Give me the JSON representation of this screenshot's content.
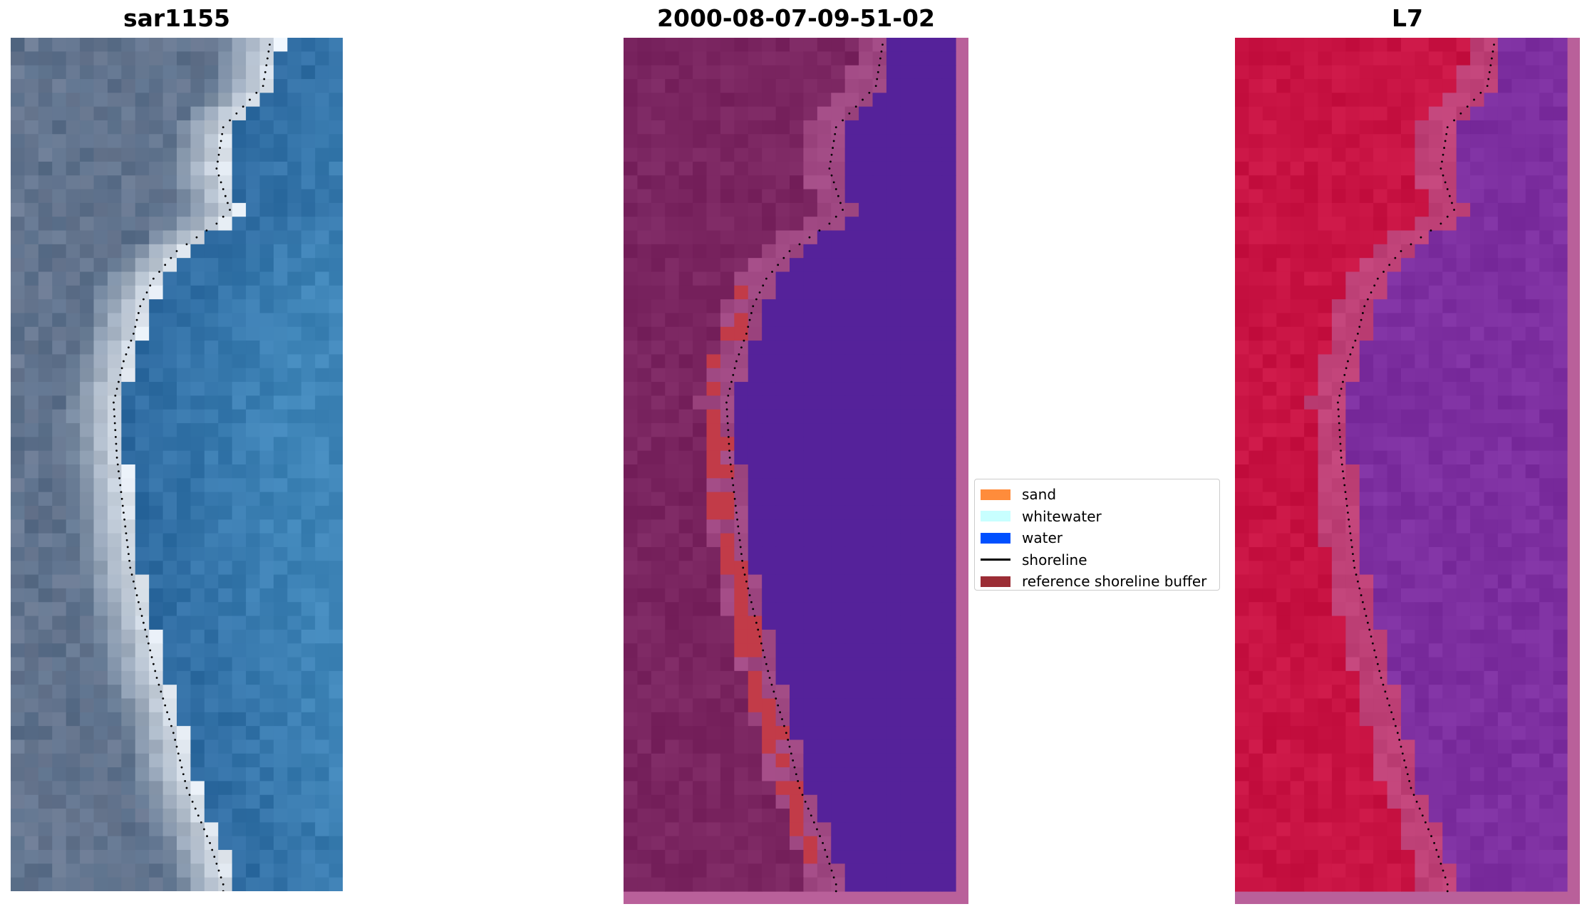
{
  "figure": {
    "panels": [
      {
        "title": "sar1155",
        "kind": "rgb-composite"
      },
      {
        "title": "2000-08-07-09-51-02",
        "kind": "classification"
      },
      {
        "title": "L7",
        "kind": "index"
      }
    ]
  },
  "legend": {
    "items": [
      {
        "label": "sand",
        "color": "#ff8c3b",
        "type": "patch"
      },
      {
        "label": "whitewater",
        "color": "#c8ffff",
        "type": "patch"
      },
      {
        "label": "water",
        "color": "#0050ff",
        "type": "patch"
      },
      {
        "label": "shoreline",
        "color": "#000000",
        "type": "line"
      },
      {
        "label": "reference shoreline buffer",
        "color": "#9b2d35",
        "type": "patch"
      }
    ]
  },
  "colors": {
    "panel1_land": "#5a6f8a",
    "panel1_sand": "#dfe6ee",
    "panel1_water": "#2e6aa0",
    "panel2_land": "#7a2560",
    "panel2_water": "#55229a",
    "panel2_buffer": "#c23b48",
    "panel2_edge": "#b9609a",
    "panel3_land": "#c81343",
    "panel3_water": "#7d2fa0",
    "panel3_edge": "#b9609a",
    "shoreline_dots": "#000000"
  }
}
